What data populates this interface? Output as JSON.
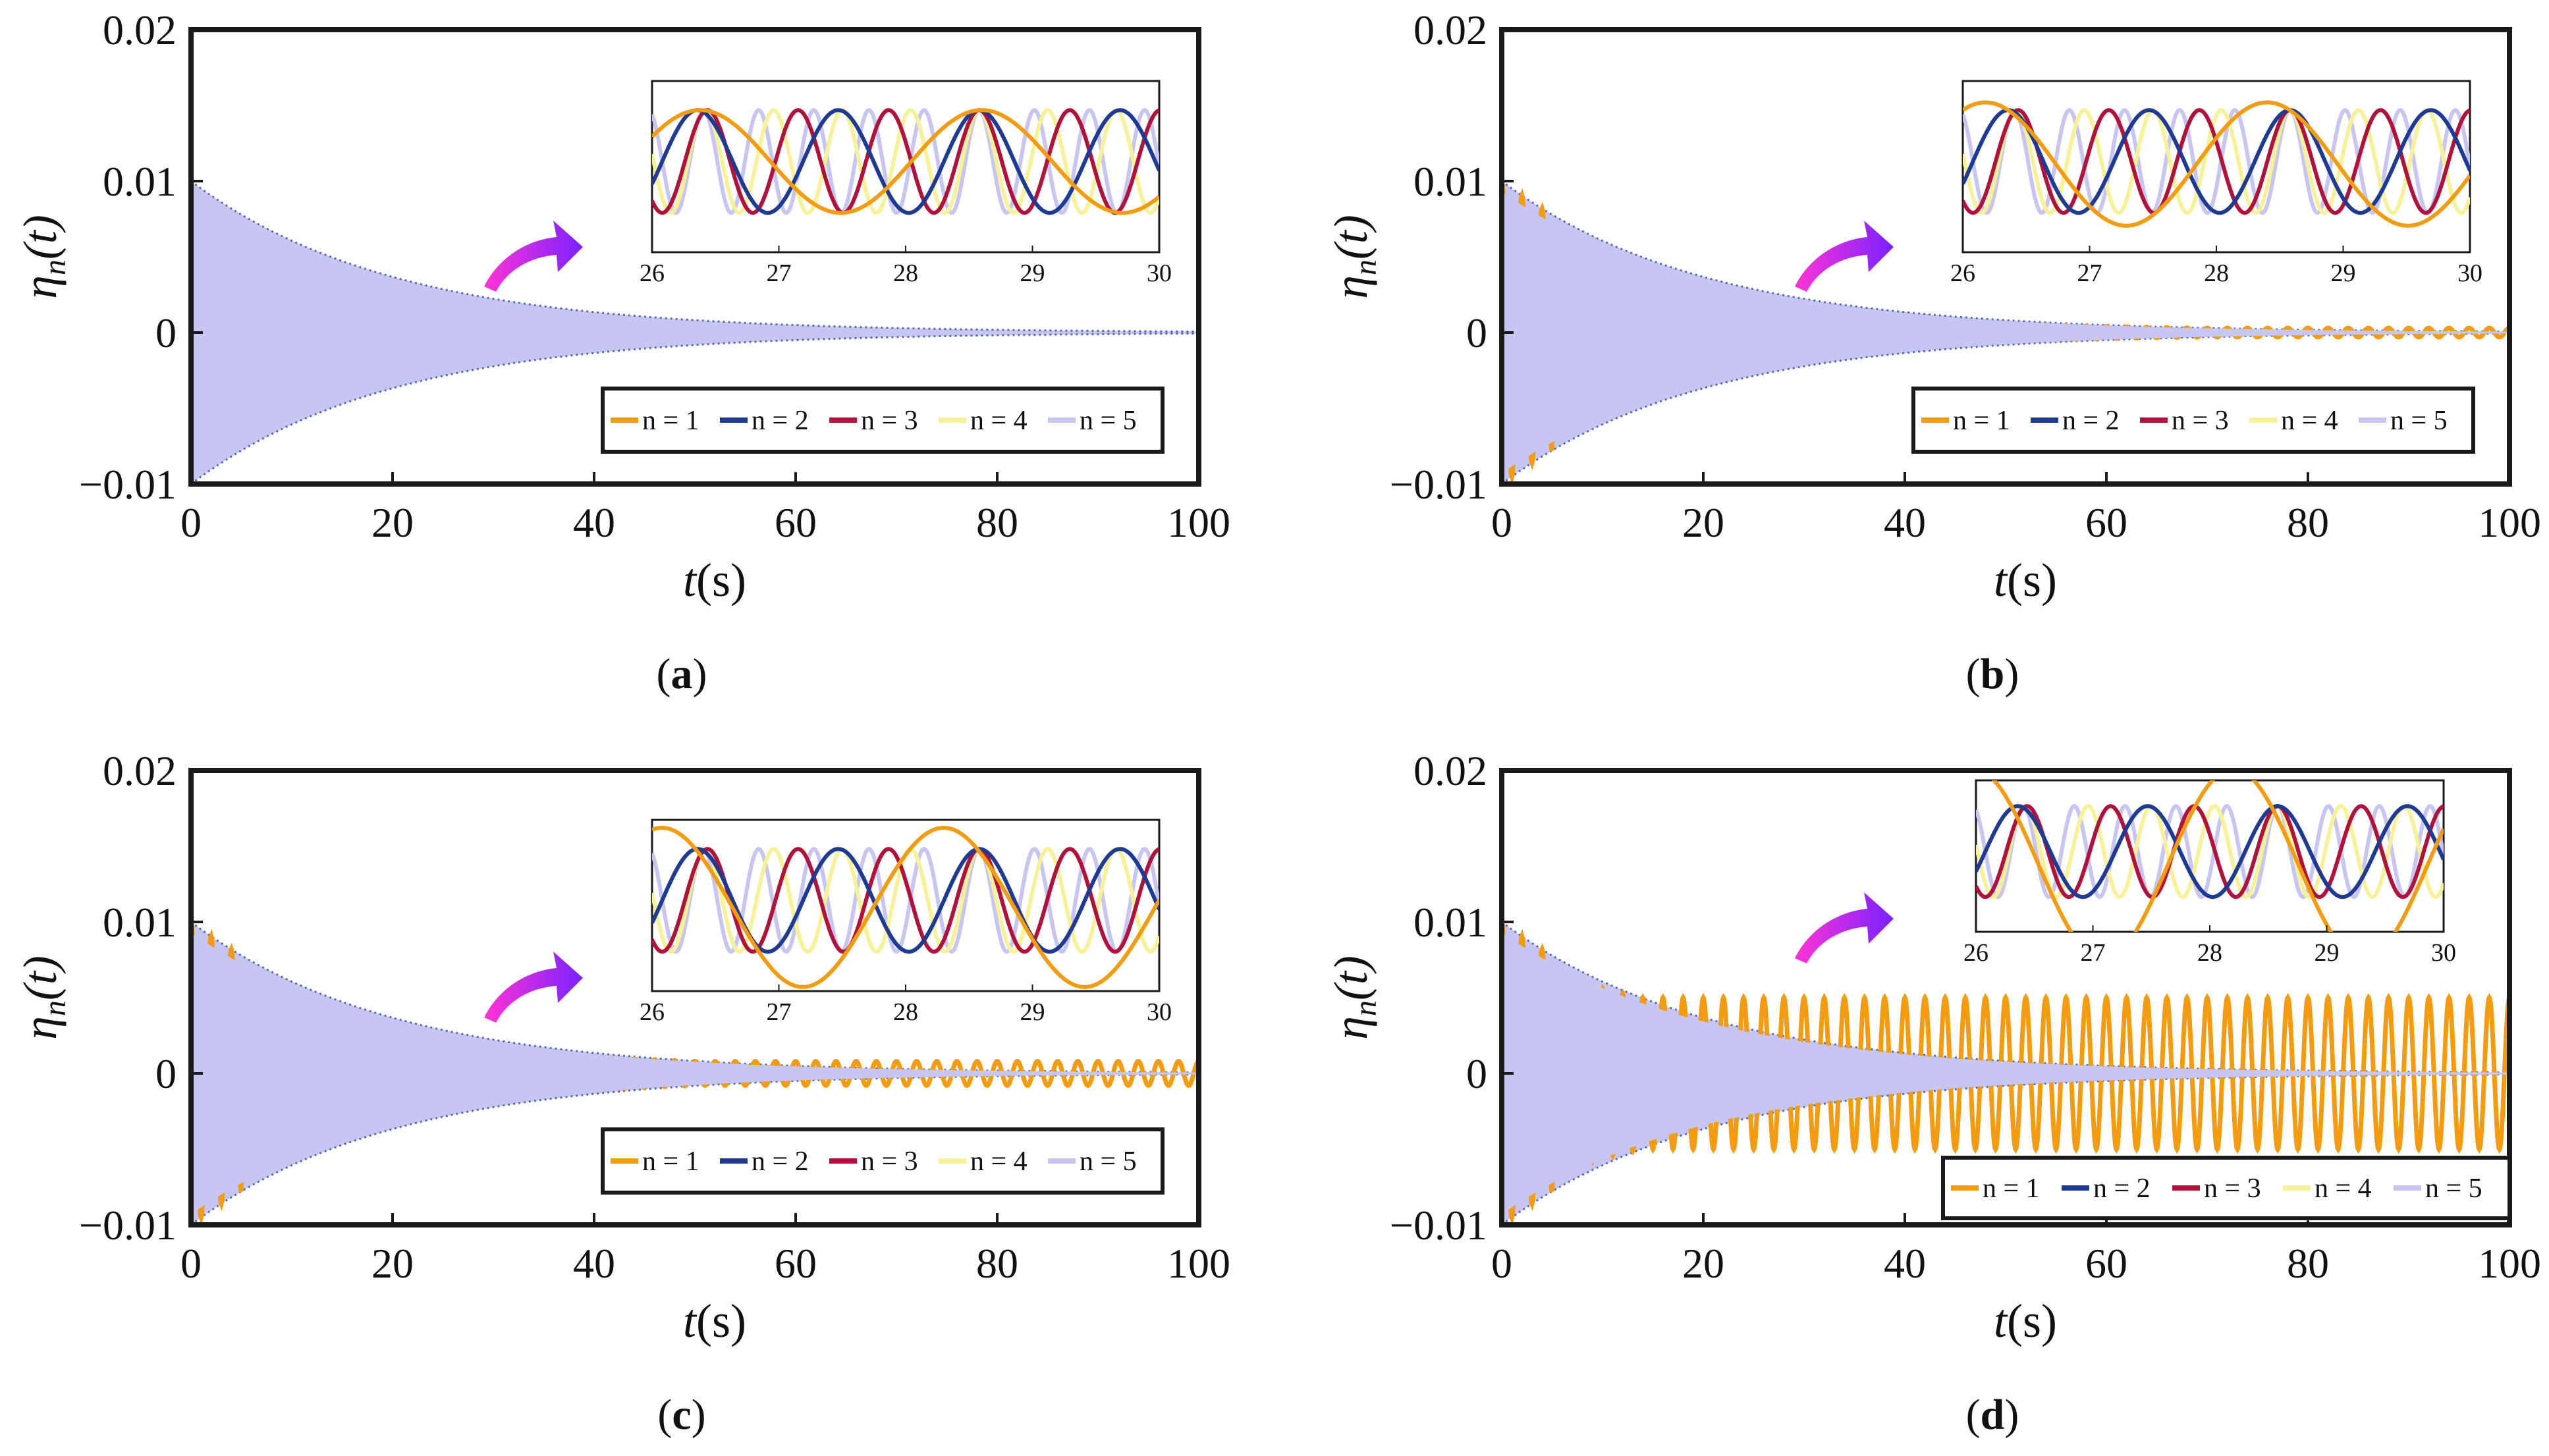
{
  "colors": {
    "n1": "#F39C12",
    "n2": "#1F3A93",
    "n3": "#B0123B",
    "n4": "#F7F29A",
    "n5": "#C7C5F2",
    "frame": "#1a1a1a",
    "arrow_start": "#FF33D6",
    "arrow_end": "#7A22FF"
  },
  "figure": {
    "ylabel_main": "η",
    "ylabel_sub": "n",
    "ylabel_arg": "(t)",
    "xlabel_main": "t",
    "xlabel_unit": "(s)"
  },
  "chart_data": [
    {
      "id": "a",
      "type": "line",
      "caption": "a",
      "x_range": [
        0,
        100
      ],
      "y_range": [
        -0.01,
        0.02
      ],
      "xticks": [
        "0",
        "20",
        "40",
        "60",
        "80",
        "100"
      ],
      "yticks": [
        "0.02",
        "0.01",
        "0",
        "−0.01"
      ],
      "legend": [
        "n = 1",
        "n = 2",
        "n = 3",
        "n = 4",
        "n = 5"
      ],
      "n1_amplitude_t100": 0.0,
      "envelope_initial": 0.01,
      "inset": {
        "x_range": [
          26,
          30
        ],
        "xticks": [
          "26",
          "27",
          "28",
          "29",
          "30"
        ],
        "n1_peak_time": 28.6
      }
    },
    {
      "id": "b",
      "type": "line",
      "caption": "b",
      "x_range": [
        0,
        100
      ],
      "y_range": [
        -0.01,
        0.02
      ],
      "xticks": [
        "0",
        "20",
        "40",
        "60",
        "80",
        "100"
      ],
      "yticks": [
        "0.02",
        "0.01",
        "0",
        "−0.01"
      ],
      "legend": [
        "n = 1",
        "n = 2",
        "n = 3",
        "n = 4",
        "n = 5"
      ],
      "n1_amplitude_t100": 0.0003,
      "envelope_initial": 0.01,
      "inset": {
        "x_range": [
          26,
          30
        ],
        "xticks": [
          "26",
          "27",
          "28",
          "29",
          "30"
        ],
        "n1_peak_time": 28.4
      }
    },
    {
      "id": "c",
      "type": "line",
      "caption": "c",
      "x_range": [
        0,
        100
      ],
      "y_range": [
        -0.01,
        0.02
      ],
      "xticks": [
        "0",
        "20",
        "40",
        "60",
        "80",
        "100"
      ],
      "yticks": [
        "0.02",
        "0.01",
        "0",
        "−0.01"
      ],
      "legend": [
        "n = 1",
        "n = 2",
        "n = 3",
        "n = 4",
        "n = 5"
      ],
      "n1_amplitude_t100": 0.0008,
      "envelope_initial": 0.01,
      "inset": {
        "x_range": [
          26,
          30
        ],
        "xticks": [
          "26",
          "27",
          "28",
          "29",
          "30"
        ],
        "n1_peak_time": 28.3
      }
    },
    {
      "id": "d",
      "type": "line",
      "caption": "d",
      "x_range": [
        0,
        100
      ],
      "y_range": [
        -0.01,
        0.02
      ],
      "xticks": [
        "0",
        "20",
        "40",
        "60",
        "80",
        "100"
      ],
      "yticks": [
        "0.02",
        "0.01",
        "0",
        "−0.01"
      ],
      "legend": [
        "n = 1",
        "n = 2",
        "n = 3",
        "n = 4",
        "n = 5"
      ],
      "n1_amplitude_t100": 0.005,
      "envelope_initial": 0.01,
      "inset": {
        "x_range": [
          26,
          30
        ],
        "xticks": [
          "26",
          "27",
          "28",
          "29",
          "30"
        ],
        "n1_peak_time": 28.2
      }
    }
  ]
}
